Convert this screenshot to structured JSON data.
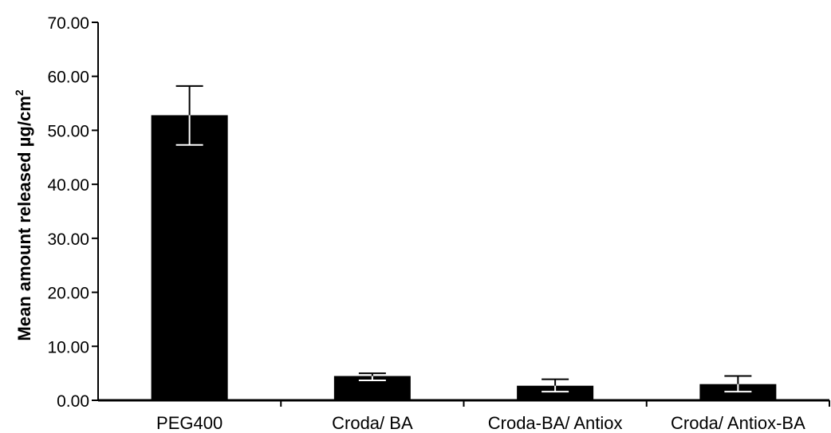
{
  "chart_data": {
    "type": "bar",
    "title": "",
    "xlabel": "",
    "ylabel": "Mean amount released µg/cm",
    "ylabel_superscript": "2",
    "categories": [
      "PEG400",
      "Croda/ BA",
      "Croda-BA/ Antiox",
      "Croda/ Antiox-BA"
    ],
    "values": [
      52.8,
      4.5,
      2.7,
      3.0
    ],
    "error_upper": [
      58.2,
      5.0,
      3.9,
      4.5
    ],
    "error_lower": [
      47.3,
      3.7,
      1.6,
      1.6
    ],
    "ylim": [
      0,
      70
    ],
    "yticks": [
      "0.00",
      "10.00",
      "20.00",
      "30.00",
      "40.00",
      "50.00",
      "60.00",
      "70.00"
    ],
    "grid": false,
    "legend": "none"
  },
  "colors": {
    "bar": "#000000",
    "axis": "#000000",
    "background": "#ffffff"
  }
}
